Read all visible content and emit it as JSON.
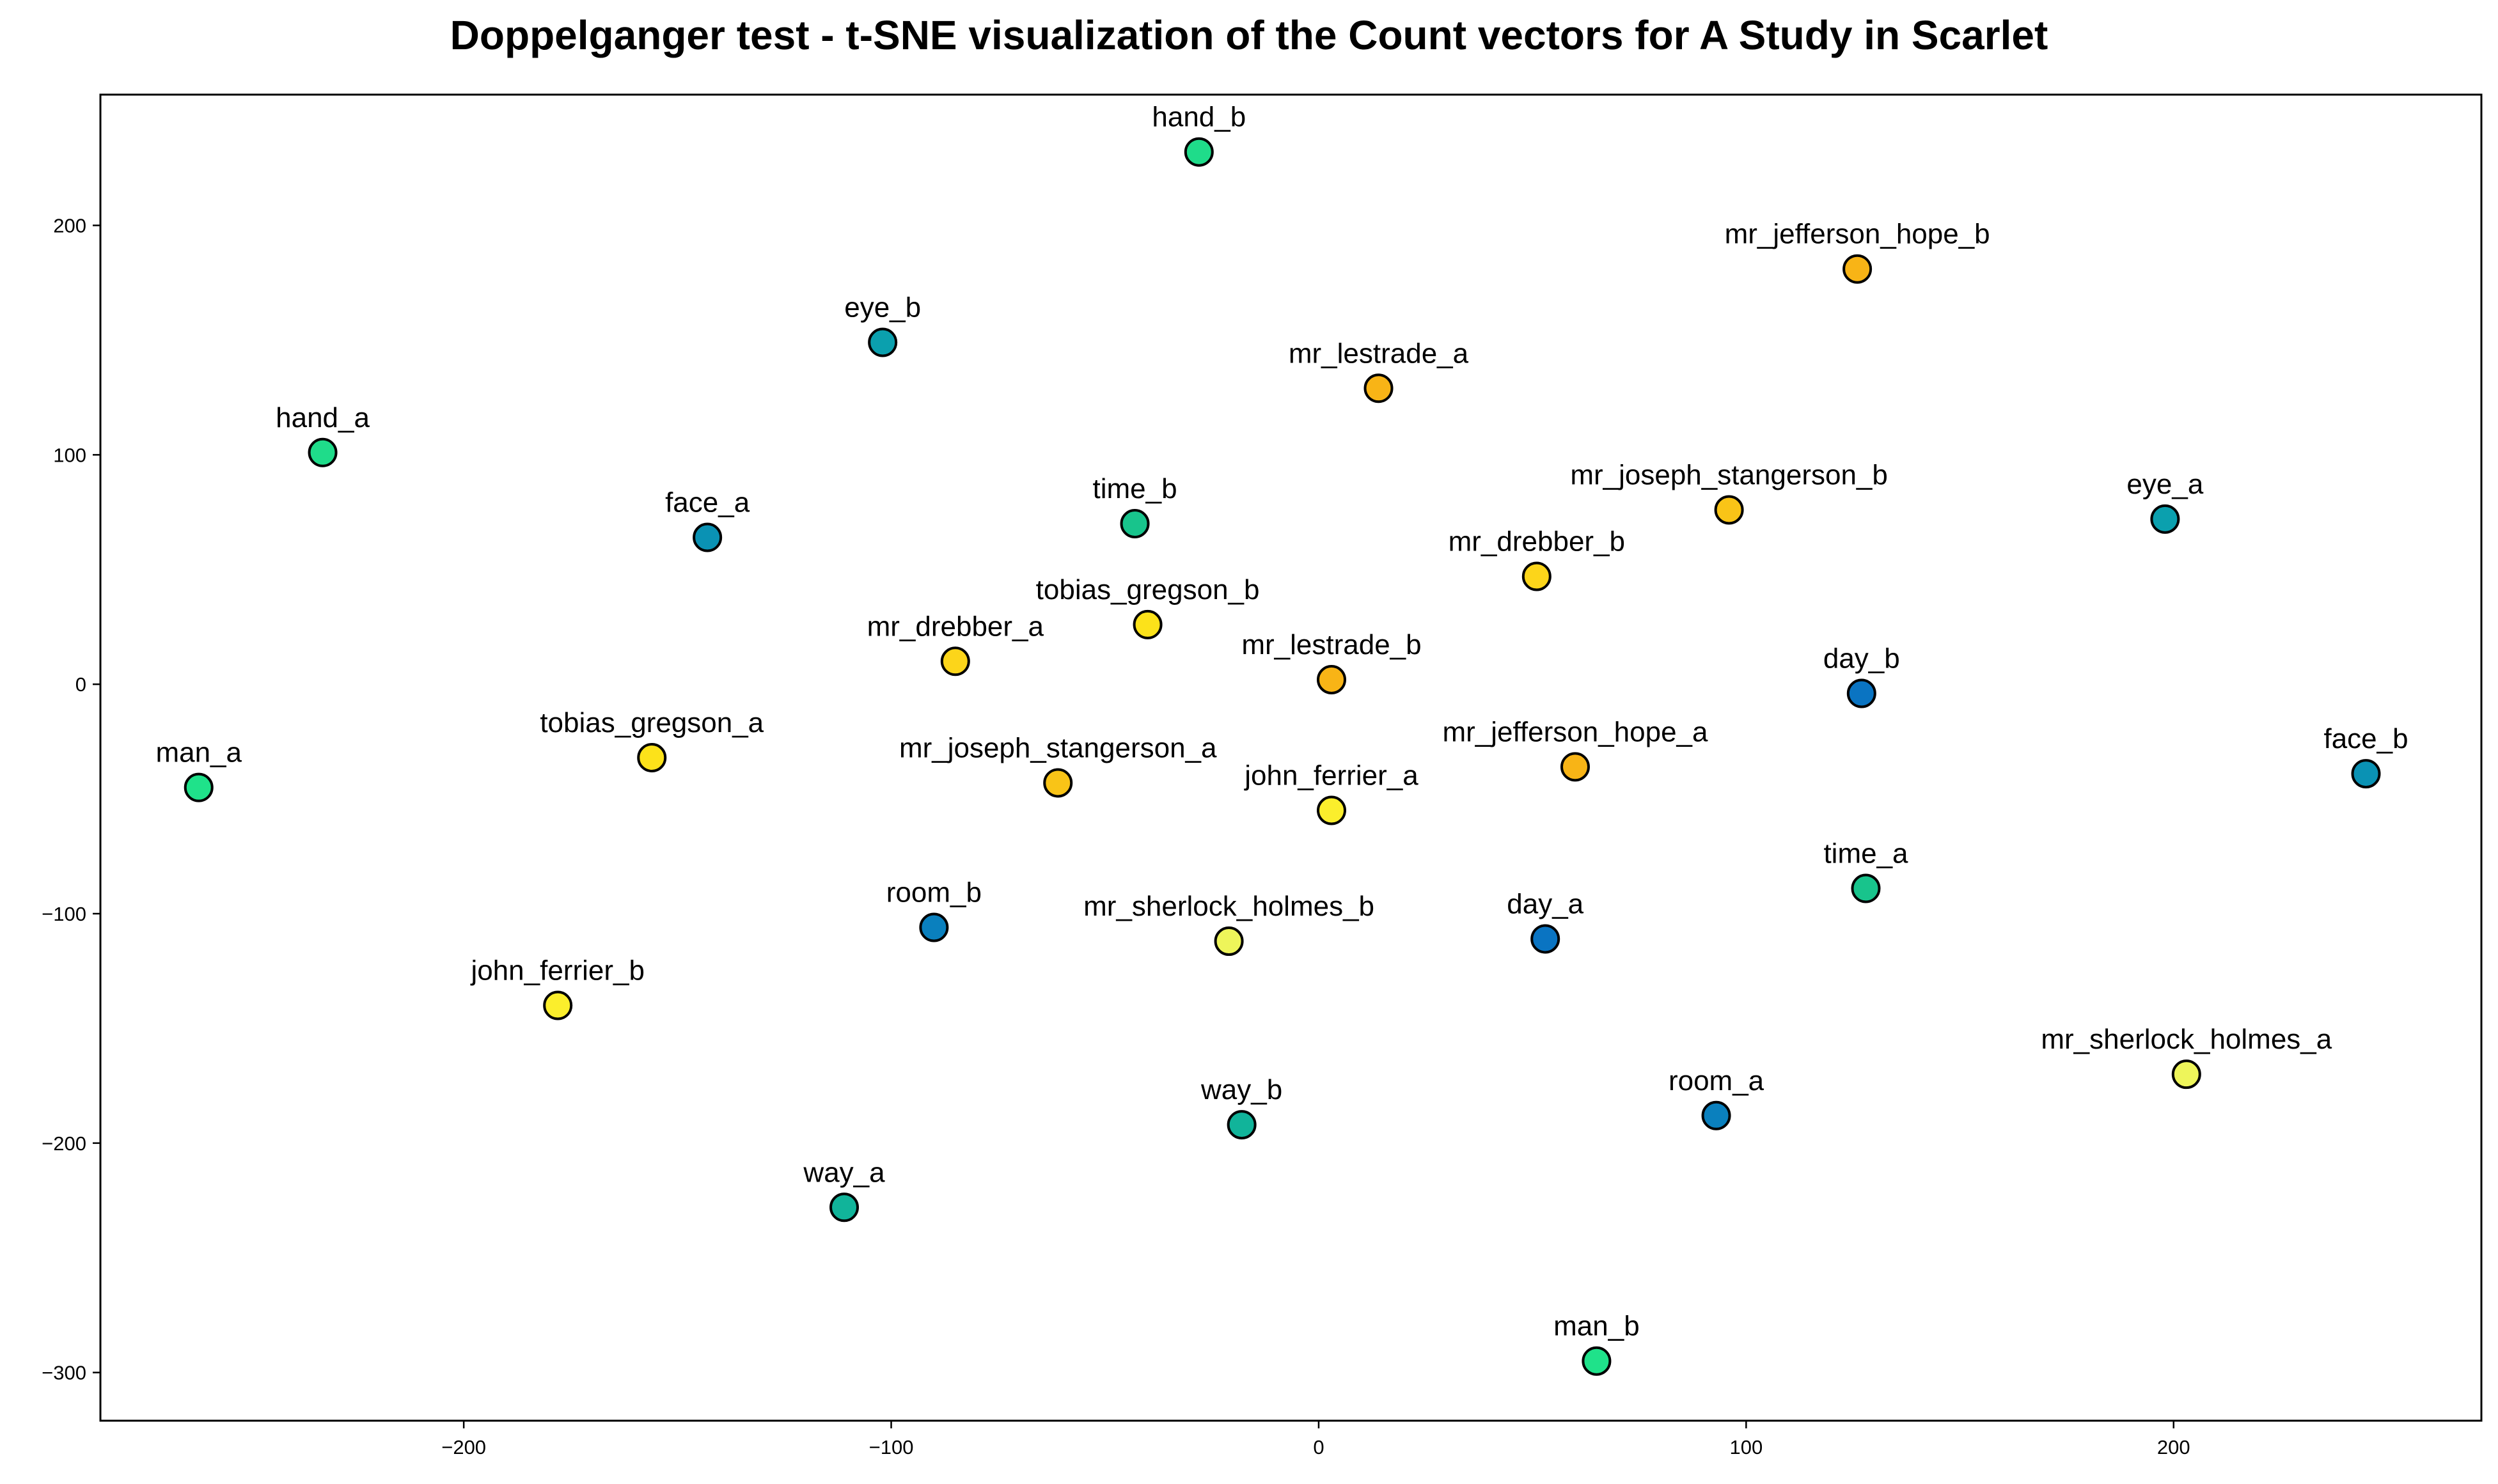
{
  "chart_data": {
    "type": "scatter",
    "title": "Doppelganger test - t-SNE visualization of the Count vectors for A Study in Scarlet",
    "xlabel": "",
    "ylabel": "",
    "xlim": [
      -285,
      272
    ],
    "ylim": [
      -321,
      257
    ],
    "xticks": [
      -200,
      -100,
      0,
      100,
      200
    ],
    "yticks": [
      -300,
      -200,
      -100,
      0,
      100,
      200
    ],
    "xtick_labels": [
      "−200",
      "−100",
      "0",
      "100",
      "200"
    ],
    "ytick_labels": [
      "−300",
      "−200",
      "−100",
      "0",
      "100",
      "200"
    ],
    "grid": false,
    "legend": "none",
    "points": [
      {
        "label": "hand_b",
        "x": -28,
        "y": 232,
        "color": "#1fdc8a"
      },
      {
        "label": "mr_jefferson_hope_b",
        "x": 126,
        "y": 181,
        "color": "#f8b416"
      },
      {
        "label": "eye_b",
        "x": -102,
        "y": 149,
        "color": "#0ba0ae"
      },
      {
        "label": "mr_lestrade_a",
        "x": 14,
        "y": 129,
        "color": "#f8b416"
      },
      {
        "label": "hand_a",
        "x": -233,
        "y": 101,
        "color": "#1fdc8a"
      },
      {
        "label": "face_a",
        "x": -143,
        "y": 64,
        "color": "#0a92b4"
      },
      {
        "label": "time_b",
        "x": -43,
        "y": 70,
        "color": "#18c48c"
      },
      {
        "label": "mr_joseph_stangerson_b",
        "x": 96,
        "y": 76,
        "color": "#f9c417"
      },
      {
        "label": "eye_a",
        "x": 198,
        "y": 72,
        "color": "#0ba0ae"
      },
      {
        "label": "mr_drebber_b",
        "x": 51,
        "y": 47,
        "color": "#fcd51a"
      },
      {
        "label": "tobias_gregson_b",
        "x": -40,
        "y": 26,
        "color": "#fce21a"
      },
      {
        "label": "mr_drebber_a",
        "x": -85,
        "y": 10,
        "color": "#fcd51a"
      },
      {
        "label": "mr_lestrade_b",
        "x": 3,
        "y": 2,
        "color": "#f8b416"
      },
      {
        "label": "day_b",
        "x": 127,
        "y": -4,
        "color": "#0a74c2"
      },
      {
        "label": "man_a",
        "x": -262,
        "y": -45,
        "color": "#1fe28a"
      },
      {
        "label": "tobias_gregson_a",
        "x": -156,
        "y": -32,
        "color": "#fce21a"
      },
      {
        "label": "mr_jefferson_hope_a",
        "x": 60,
        "y": -36,
        "color": "#f8b416"
      },
      {
        "label": "face_b",
        "x": 245,
        "y": -39,
        "color": "#0a92b4"
      },
      {
        "label": "mr_joseph_stangerson_a",
        "x": -61,
        "y": -43,
        "color": "#f9c417"
      },
      {
        "label": "john_ferrier_a",
        "x": 3,
        "y": -55,
        "color": "#fbee2c"
      },
      {
        "label": "time_a",
        "x": 128,
        "y": -89,
        "color": "#18c48c"
      },
      {
        "label": "room_b",
        "x": -90,
        "y": -106,
        "color": "#0a80be"
      },
      {
        "label": "mr_sherlock_holmes_b",
        "x": -21,
        "y": -112,
        "color": "#eef55a"
      },
      {
        "label": "day_a",
        "x": 53,
        "y": -111,
        "color": "#0a74c2"
      },
      {
        "label": "john_ferrier_b",
        "x": -178,
        "y": -140,
        "color": "#fbee2c"
      },
      {
        "label": "mr_sherlock_holmes_a",
        "x": 203,
        "y": -170,
        "color": "#eef55a"
      },
      {
        "label": "way_b",
        "x": -18,
        "y": -192,
        "color": "#11b49a"
      },
      {
        "label": "room_a",
        "x": 93,
        "y": -188,
        "color": "#0a80be"
      },
      {
        "label": "way_a",
        "x": -111,
        "y": -228,
        "color": "#11b49a"
      },
      {
        "label": "man_b",
        "x": 65,
        "y": -295,
        "color": "#1fe28a"
      }
    ]
  }
}
